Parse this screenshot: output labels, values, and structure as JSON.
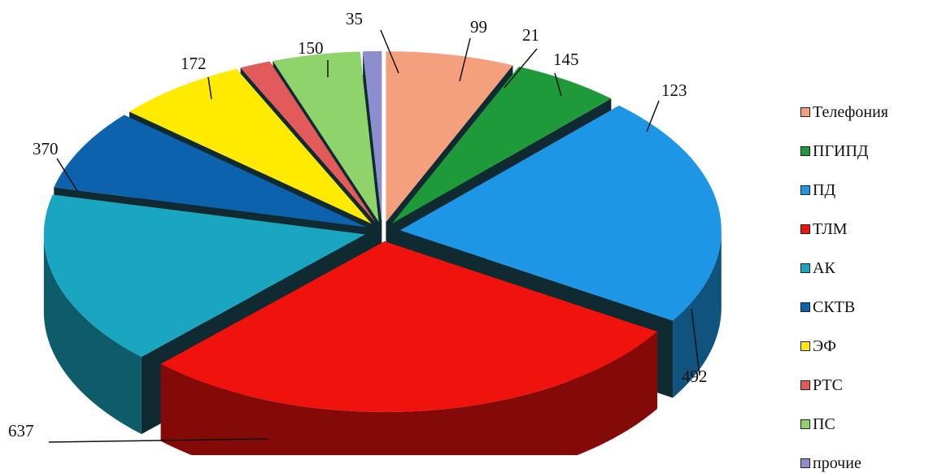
{
  "chart_data": {
    "type": "pie",
    "title": "",
    "style": "3d-exploded",
    "legend_position": "right",
    "slices": [
      {
        "label": "Телефония",
        "value": 145,
        "display": "145",
        "color": "#f4a07c",
        "legend_color": "#f4a07c"
      },
      {
        "label": "ПГИПД",
        "value": 123,
        "display": "123",
        "color": "#1f9a3a",
        "legend_color": "#1f9a3a"
      },
      {
        "label": "ПД",
        "value": 492,
        "display": "492",
        "color": "#1e96e6",
        "legend_color": "#1e96e6"
      },
      {
        "label": "ТЛМ",
        "value": 637,
        "display": "637",
        "color": "#f0120c",
        "legend_color": "#f0120c"
      },
      {
        "label": "АК",
        "value": 370,
        "display": "370",
        "color": "#1aa6c0",
        "legend_color": "#1aa6c0"
      },
      {
        "label": "СКТВ",
        "value": 172,
        "display": "172",
        "color": "#0d62ae",
        "legend_color": "#0d62ae"
      },
      {
        "label": "ЭФ",
        "value": 150,
        "display": "150",
        "color": "#ffea00",
        "legend_color": "#ffea00"
      },
      {
        "label": "РТС",
        "value": 35,
        "display": "35",
        "color": "#e25a5a",
        "legend_color": "#e25a5a"
      },
      {
        "label": "ПС",
        "value": 99,
        "display": "99",
        "color": "#8fd46a",
        "legend_color": "#8fd46a"
      },
      {
        "label": "прочие",
        "value": 21,
        "display": "21",
        "color": "#8c8ed0",
        "legend_color": "#8c8ed0"
      }
    ]
  }
}
